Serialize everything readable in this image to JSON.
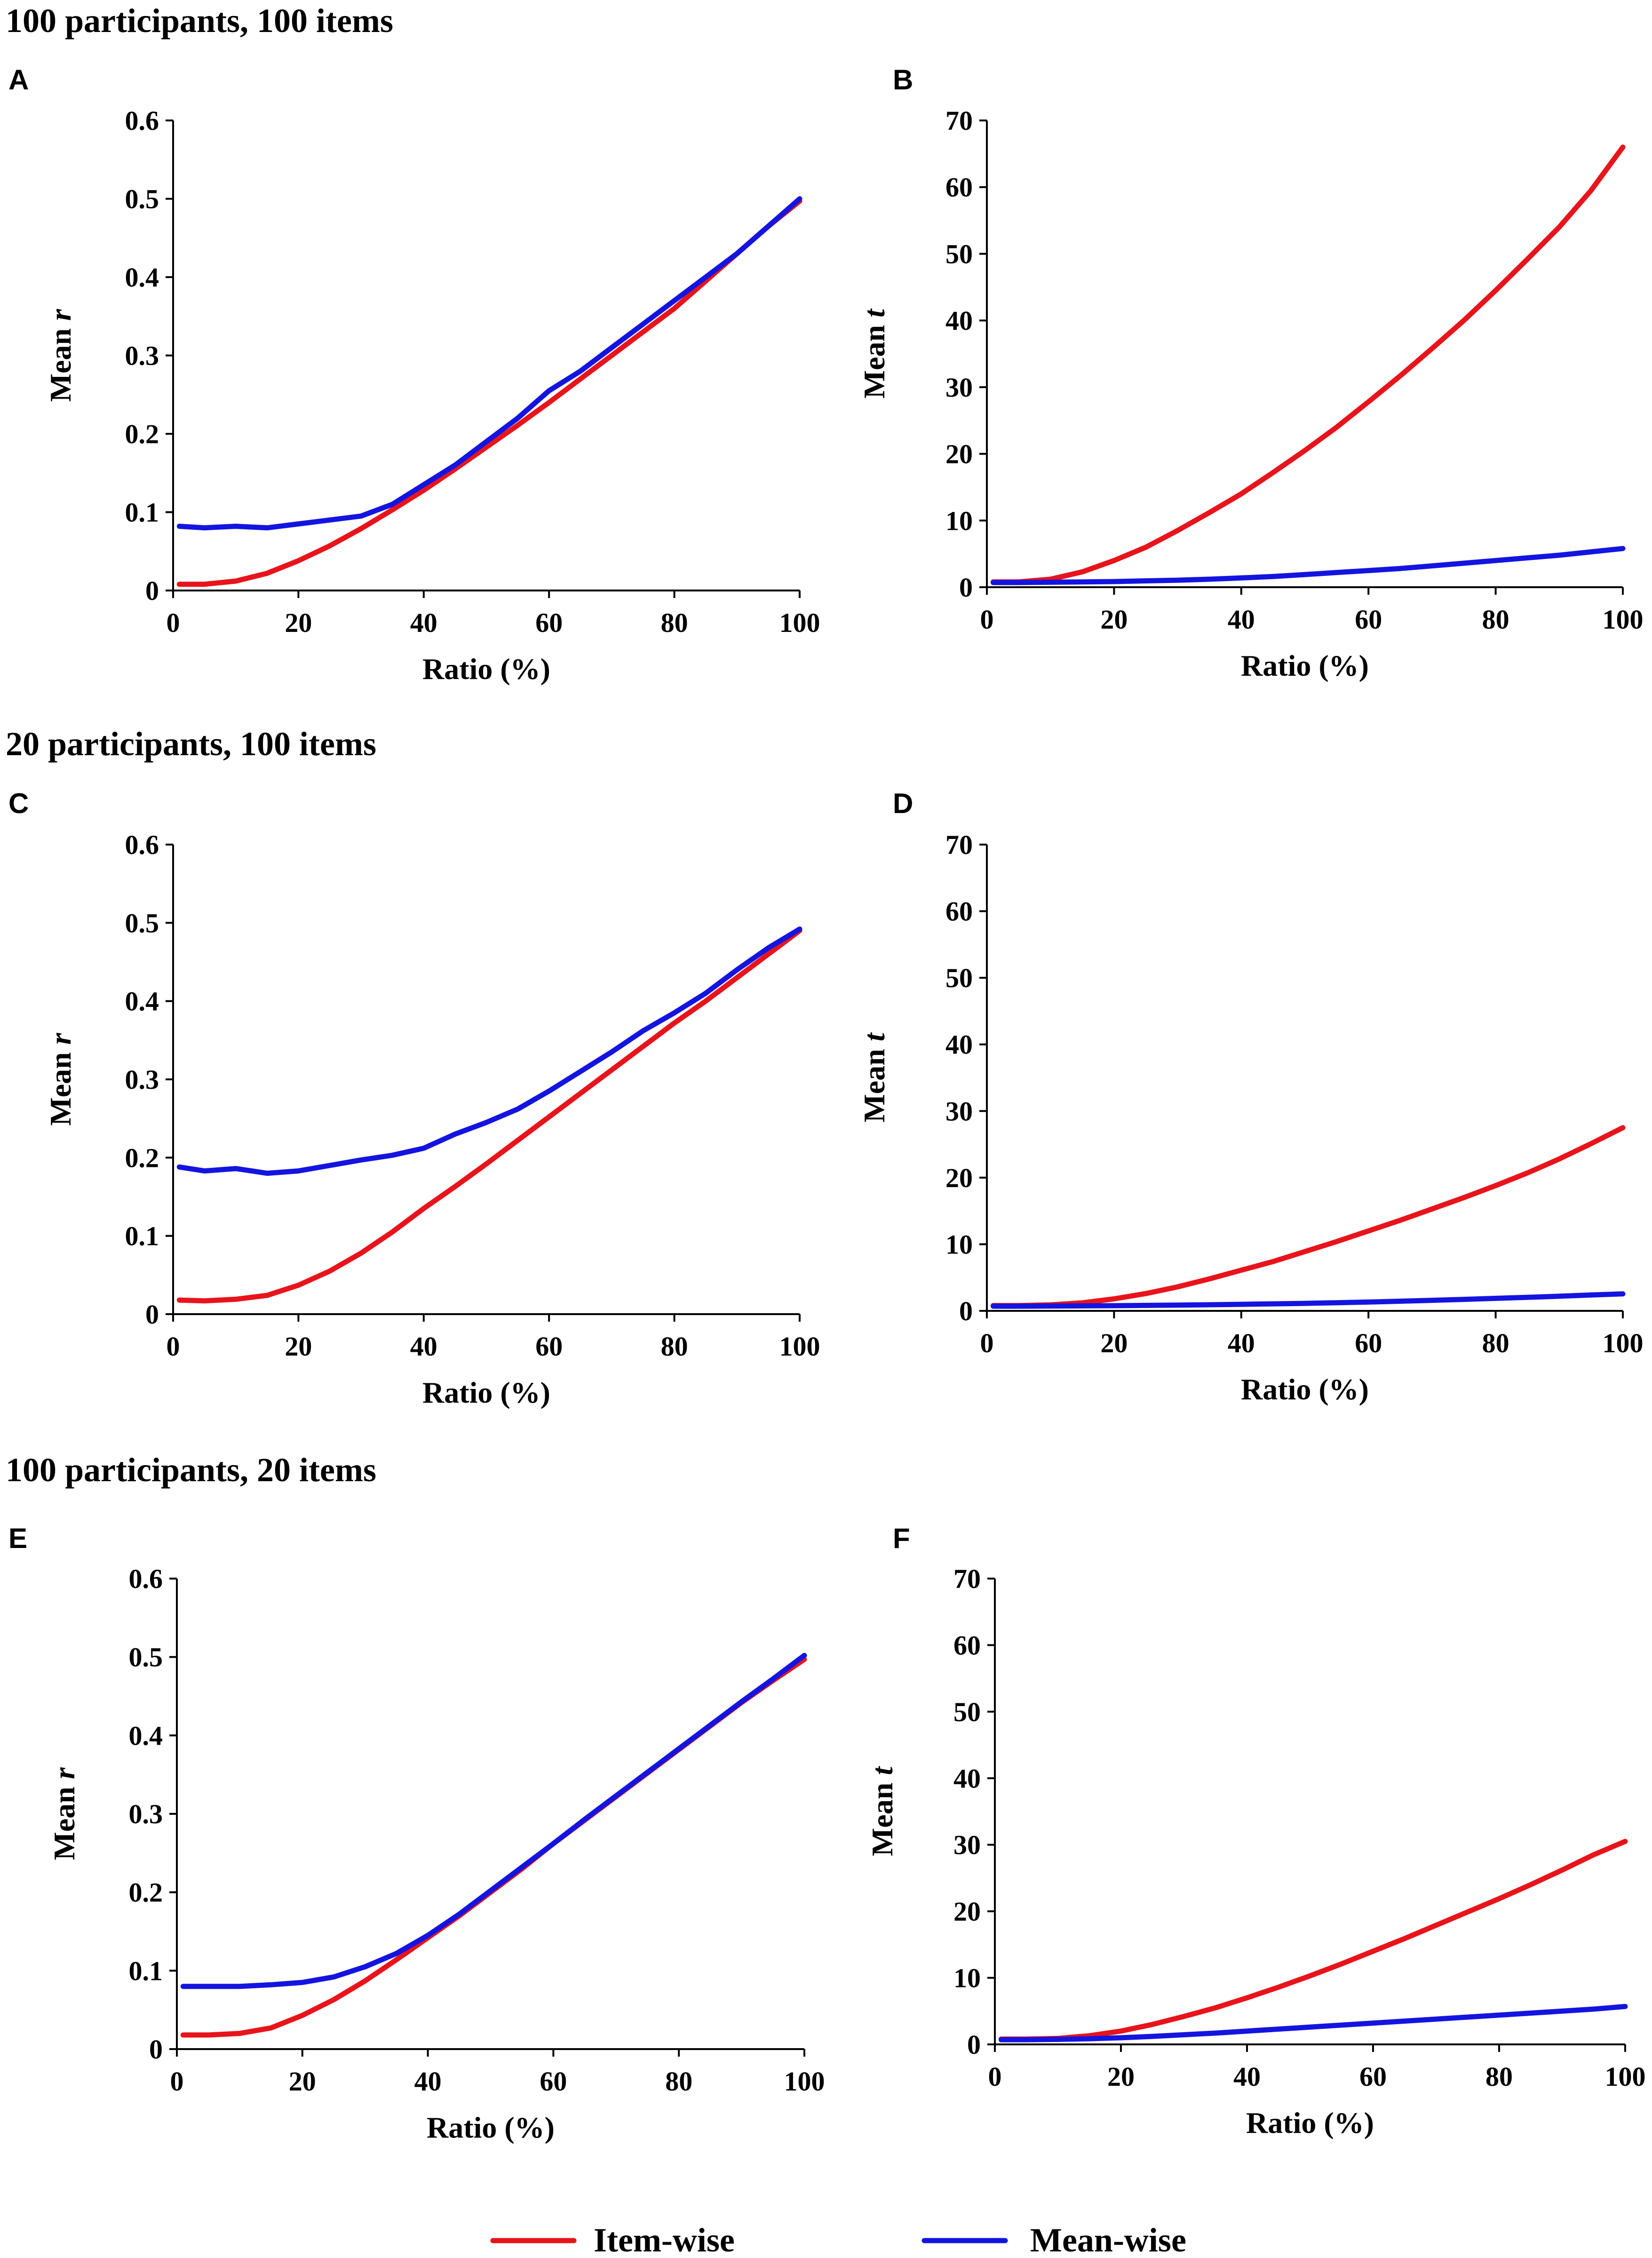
{
  "sections": [
    {
      "title": "100 participants, 100 items"
    },
    {
      "title": "20 participants, 100 items"
    },
    {
      "title": "100 participants, 20 items"
    }
  ],
  "legend": {
    "entries": [
      {
        "name": "Item-wise",
        "color": "#e8141b"
      },
      {
        "name": "Mean-wise",
        "color": "#1414e0"
      }
    ]
  },
  "chart_data": [
    {
      "panel": "A",
      "type": "line",
      "xlabel": "Ratio (%)",
      "ylabel_main": "Mean",
      "ylabel_italic": "r",
      "xlim": [
        0,
        100
      ],
      "ylim": [
        0,
        0.6
      ],
      "xticks": [
        "0",
        "20",
        "40",
        "60",
        "80",
        "100"
      ],
      "yticks": [
        "0",
        "0.1",
        "0.2",
        "0.3",
        "0.4",
        "0.5",
        "0.6"
      ],
      "x": [
        1,
        5,
        10,
        15,
        20,
        25,
        30,
        35,
        40,
        45,
        50,
        55,
        60,
        65,
        70,
        75,
        80,
        85,
        90,
        95,
        100
      ],
      "series": [
        {
          "name": "Item-wise",
          "color": "#e8141b",
          "values": [
            0.008,
            0.008,
            0.012,
            0.022,
            0.038,
            0.057,
            0.079,
            0.103,
            0.128,
            0.155,
            0.183,
            0.211,
            0.24,
            0.27,
            0.3,
            0.33,
            0.36,
            0.395,
            0.43,
            0.465,
            0.497
          ]
        },
        {
          "name": "Mean-wise",
          "color": "#1414e0",
          "values": [
            0.082,
            0.08,
            0.082,
            0.08,
            0.085,
            0.09,
            0.095,
            0.11,
            0.135,
            0.16,
            0.19,
            0.22,
            0.255,
            0.28,
            0.31,
            0.34,
            0.37,
            0.4,
            0.43,
            0.465,
            0.5
          ]
        }
      ]
    },
    {
      "panel": "B",
      "type": "line",
      "xlabel": "Ratio (%)",
      "ylabel_main": "Mean",
      "ylabel_italic": "t",
      "xlim": [
        0,
        100
      ],
      "ylim": [
        0,
        70
      ],
      "xticks": [
        "0",
        "20",
        "40",
        "60",
        "80",
        "100"
      ],
      "yticks": [
        "0",
        "10",
        "20",
        "30",
        "40",
        "50",
        "60",
        "70"
      ],
      "x": [
        1,
        5,
        10,
        15,
        20,
        25,
        30,
        35,
        40,
        45,
        50,
        55,
        60,
        65,
        70,
        75,
        80,
        85,
        90,
        95,
        100
      ],
      "series": [
        {
          "name": "Item-wise",
          "color": "#e8141b",
          "values": [
            0.8,
            0.8,
            1.2,
            2.3,
            4.0,
            6.0,
            8.5,
            11.2,
            14.0,
            17.2,
            20.5,
            24.0,
            27.8,
            31.7,
            35.8,
            40.0,
            44.5,
            49.2,
            54.0,
            59.5,
            66.0
          ]
        },
        {
          "name": "Mean-wise",
          "color": "#1414e0",
          "values": [
            0.7,
            0.7,
            0.75,
            0.8,
            0.85,
            0.95,
            1.05,
            1.2,
            1.4,
            1.6,
            1.9,
            2.2,
            2.5,
            2.8,
            3.2,
            3.6,
            4.0,
            4.4,
            4.8,
            5.3,
            5.8
          ]
        }
      ]
    },
    {
      "panel": "C",
      "type": "line",
      "xlabel": "Ratio (%)",
      "ylabel_main": "Mean",
      "ylabel_italic": "r",
      "xlim": [
        0,
        100
      ],
      "ylim": [
        0,
        0.6
      ],
      "xticks": [
        "0",
        "20",
        "40",
        "60",
        "80",
        "100"
      ],
      "yticks": [
        "0",
        "0.1",
        "0.2",
        "0.3",
        "0.4",
        "0.5",
        "0.6"
      ],
      "x": [
        1,
        5,
        10,
        15,
        20,
        25,
        30,
        35,
        40,
        45,
        50,
        55,
        60,
        65,
        70,
        75,
        80,
        85,
        90,
        95,
        100
      ],
      "series": [
        {
          "name": "Item-wise",
          "color": "#e8141b",
          "values": [
            0.018,
            0.017,
            0.019,
            0.024,
            0.037,
            0.055,
            0.078,
            0.105,
            0.135,
            0.163,
            0.192,
            0.222,
            0.252,
            0.282,
            0.312,
            0.342,
            0.372,
            0.4,
            0.43,
            0.46,
            0.49
          ]
        },
        {
          "name": "Mean-wise",
          "color": "#1414e0",
          "values": [
            0.188,
            0.183,
            0.186,
            0.18,
            0.183,
            0.19,
            0.197,
            0.203,
            0.212,
            0.23,
            0.245,
            0.262,
            0.285,
            0.31,
            0.335,
            0.362,
            0.385,
            0.41,
            0.44,
            0.468,
            0.492
          ]
        }
      ]
    },
    {
      "panel": "D",
      "type": "line",
      "xlabel": "Ratio (%)",
      "ylabel_main": "Mean",
      "ylabel_italic": "t",
      "xlim": [
        0,
        100
      ],
      "ylim": [
        0,
        70
      ],
      "xticks": [
        "0",
        "20",
        "40",
        "60",
        "80",
        "100"
      ],
      "yticks": [
        "0",
        "10",
        "20",
        "30",
        "40",
        "50",
        "60",
        "70"
      ],
      "x": [
        1,
        5,
        10,
        15,
        20,
        25,
        30,
        35,
        40,
        45,
        50,
        55,
        60,
        65,
        70,
        75,
        80,
        85,
        90,
        95,
        100
      ],
      "series": [
        {
          "name": "Item-wise",
          "color": "#e8141b",
          "values": [
            0.8,
            0.8,
            0.9,
            1.2,
            1.8,
            2.6,
            3.6,
            4.8,
            6.1,
            7.4,
            8.9,
            10.4,
            12.0,
            13.6,
            15.3,
            17.0,
            18.8,
            20.7,
            22.8,
            25.1,
            27.5
          ]
        },
        {
          "name": "Mean-wise",
          "color": "#1414e0",
          "values": [
            0.7,
            0.7,
            0.72,
            0.75,
            0.78,
            0.82,
            0.87,
            0.92,
            0.98,
            1.05,
            1.12,
            1.22,
            1.32,
            1.45,
            1.58,
            1.72,
            1.88,
            2.03,
            2.2,
            2.38,
            2.55
          ]
        }
      ]
    },
    {
      "panel": "E",
      "type": "line",
      "xlabel": "Ratio (%)",
      "ylabel_main": "Mean",
      "ylabel_italic": "r",
      "xlim": [
        0,
        100
      ],
      "ylim": [
        0,
        0.6
      ],
      "xticks": [
        "0",
        "20",
        "40",
        "60",
        "80",
        "100"
      ],
      "yticks": [
        "0",
        "0.1",
        "0.2",
        "0.3",
        "0.4",
        "0.5",
        "0.6"
      ],
      "x": [
        1,
        5,
        10,
        15,
        20,
        25,
        30,
        35,
        40,
        45,
        50,
        55,
        60,
        65,
        70,
        75,
        80,
        85,
        90,
        95,
        100
      ],
      "series": [
        {
          "name": "Item-wise",
          "color": "#e8141b",
          "values": [
            0.018,
            0.018,
            0.02,
            0.027,
            0.043,
            0.063,
            0.087,
            0.114,
            0.142,
            0.17,
            0.2,
            0.23,
            0.262,
            0.292,
            0.322,
            0.352,
            0.382,
            0.412,
            0.442,
            0.47,
            0.497
          ]
        },
        {
          "name": "Mean-wise",
          "color": "#1414e0",
          "values": [
            0.08,
            0.08,
            0.08,
            0.082,
            0.085,
            0.092,
            0.105,
            0.122,
            0.145,
            0.172,
            0.202,
            0.232,
            0.262,
            0.293,
            0.323,
            0.353,
            0.383,
            0.413,
            0.443,
            0.472,
            0.502
          ]
        }
      ]
    },
    {
      "panel": "F",
      "type": "line",
      "xlabel": "Ratio (%)",
      "ylabel_main": "Mean",
      "ylabel_italic": "t",
      "xlim": [
        0,
        100
      ],
      "ylim": [
        0,
        70
      ],
      "xticks": [
        "0",
        "20",
        "40",
        "60",
        "80",
        "100"
      ],
      "yticks": [
        "0",
        "10",
        "20",
        "30",
        "40",
        "50",
        "60",
        "70"
      ],
      "x": [
        1,
        5,
        10,
        15,
        20,
        25,
        30,
        35,
        40,
        45,
        50,
        55,
        60,
        65,
        70,
        75,
        80,
        85,
        90,
        95,
        100
      ],
      "series": [
        {
          "name": "Item-wise",
          "color": "#e8141b",
          "values": [
            0.8,
            0.8,
            0.9,
            1.3,
            2.0,
            3.0,
            4.2,
            5.5,
            7.0,
            8.6,
            10.3,
            12.1,
            14.0,
            15.9,
            17.9,
            19.9,
            21.9,
            24.0,
            26.2,
            28.5,
            30.5
          ]
        },
        {
          "name": "Mean-wise",
          "color": "#1414e0",
          "values": [
            0.7,
            0.7,
            0.75,
            0.85,
            1.0,
            1.2,
            1.45,
            1.7,
            2.0,
            2.3,
            2.6,
            2.9,
            3.2,
            3.5,
            3.8,
            4.1,
            4.4,
            4.7,
            5.0,
            5.3,
            5.7
          ]
        }
      ]
    }
  ]
}
